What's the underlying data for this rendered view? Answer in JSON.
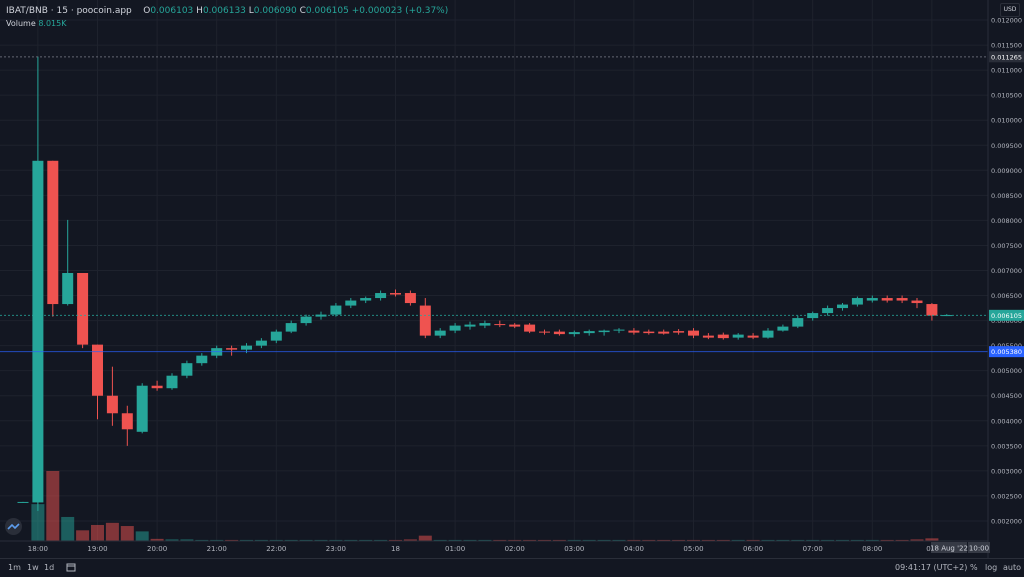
{
  "header": {
    "symbol": "IBAT/BNB",
    "interval": "15",
    "source": "poocoin.app",
    "o_label": "O",
    "o_value": "0.006103",
    "h_label": "H",
    "h_value": "0.006133",
    "l_label": "L",
    "l_value": "0.006090",
    "c_label": "C",
    "c_value": "0.006105",
    "change": "+0.000023 (+0.37%)",
    "volume_label": "Volume",
    "volume_value": "8.015K"
  },
  "currency_button": "USD",
  "bottom_bar": {
    "ranges": [
      "1m",
      "1w",
      "1d"
    ],
    "clock": "09:41:17 (UTC+2)",
    "percent": "%",
    "log": "log",
    "auto": "auto"
  },
  "colors": {
    "up": "#26a69a",
    "down": "#ef5350",
    "background": "#131722",
    "grid": "#1e222d"
  },
  "chart_data": {
    "type": "candlestick",
    "ylim": [
      0.0017,
      0.0122
    ],
    "y_ticks": [
      "0.002000",
      "0.002500",
      "0.003000",
      "0.003500",
      "0.004000",
      "0.004500",
      "0.005000",
      "0.005500",
      "0.006000",
      "0.006500",
      "0.007000",
      "0.007500",
      "0.008000",
      "0.008500",
      "0.009000",
      "0.009500",
      "0.010000",
      "0.010500",
      "0.011000",
      "0.011500",
      "0.012000"
    ],
    "x_ticks": [
      "18:00",
      "19:00",
      "20:00",
      "21:00",
      "22:00",
      "23:00",
      "18",
      "01:00",
      "02:00",
      "03:00",
      "04:00",
      "05:00",
      "06:00",
      "07:00",
      "08:00",
      "09:"
    ],
    "price_labels": [
      {
        "label": "0.011265",
        "value": 0.011265,
        "color": "#2a2e39"
      },
      {
        "label": "0.006105",
        "value": 0.006105,
        "color": "#26a69a"
      },
      {
        "label": "0.005380",
        "value": 0.00538,
        "color": "#2962ff"
      }
    ],
    "date_marker": "18 Aug '22",
    "time_marker": "10:00",
    "candles": [
      {
        "t": 0,
        "o": 0.00237,
        "h": 0.00238,
        "l": 0.00236,
        "c": 0.00238,
        "v": 0
      },
      {
        "t": 1,
        "o": 0.00237,
        "h": 0.01127,
        "l": 0.0022,
        "c": 0.00919,
        "v": 6.9
      },
      {
        "t": 2,
        "o": 0.00919,
        "h": 0.00919,
        "l": 0.00608,
        "c": 0.00633,
        "v": 13.1
      },
      {
        "t": 3,
        "o": 0.00633,
        "h": 0.00801,
        "l": 0.0063,
        "c": 0.00695,
        "v": 4.5
      },
      {
        "t": 4,
        "o": 0.00695,
        "h": 0.00695,
        "l": 0.00545,
        "c": 0.00552,
        "v": 2.0
      },
      {
        "t": 5,
        "o": 0.00552,
        "h": 0.00552,
        "l": 0.00403,
        "c": 0.0045,
        "v": 3.0
      },
      {
        "t": 6,
        "o": 0.0045,
        "h": 0.00508,
        "l": 0.0039,
        "c": 0.00415,
        "v": 3.4
      },
      {
        "t": 7,
        "o": 0.00415,
        "h": 0.0043,
        "l": 0.0035,
        "c": 0.00383,
        "v": 2.8
      },
      {
        "t": 8,
        "o": 0.00378,
        "h": 0.00475,
        "l": 0.00375,
        "c": 0.0047,
        "v": 1.8
      },
      {
        "t": 9,
        "o": 0.0047,
        "h": 0.0048,
        "l": 0.0046,
        "c": 0.00465,
        "v": 0.4
      },
      {
        "t": 10,
        "o": 0.00465,
        "h": 0.00495,
        "l": 0.00462,
        "c": 0.0049,
        "v": 0.3
      },
      {
        "t": 11,
        "o": 0.0049,
        "h": 0.0052,
        "l": 0.00485,
        "c": 0.00515,
        "v": 0.3
      },
      {
        "t": 12,
        "o": 0.00515,
        "h": 0.00535,
        "l": 0.0051,
        "c": 0.0053,
        "v": 0.2
      },
      {
        "t": 13,
        "o": 0.0053,
        "h": 0.0055,
        "l": 0.00525,
        "c": 0.00545,
        "v": 0.2
      },
      {
        "t": 14,
        "o": 0.00545,
        "h": 0.0055,
        "l": 0.0053,
        "c": 0.00542,
        "v": 0.2
      },
      {
        "t": 15,
        "o": 0.00542,
        "h": 0.00555,
        "l": 0.00535,
        "c": 0.0055,
        "v": 0.2
      },
      {
        "t": 16,
        "o": 0.0055,
        "h": 0.00565,
        "l": 0.00545,
        "c": 0.0056,
        "v": 0.2
      },
      {
        "t": 17,
        "o": 0.0056,
        "h": 0.00582,
        "l": 0.00555,
        "c": 0.00578,
        "v": 0.2
      },
      {
        "t": 18,
        "o": 0.00578,
        "h": 0.006,
        "l": 0.00575,
        "c": 0.00595,
        "v": 0.2
      },
      {
        "t": 19,
        "o": 0.00595,
        "h": 0.00612,
        "l": 0.0059,
        "c": 0.00608,
        "v": 0.2
      },
      {
        "t": 20,
        "o": 0.00608,
        "h": 0.00618,
        "l": 0.00602,
        "c": 0.00612,
        "v": 0.2
      },
      {
        "t": 21,
        "o": 0.00612,
        "h": 0.00635,
        "l": 0.00608,
        "c": 0.0063,
        "v": 0.2
      },
      {
        "t": 22,
        "o": 0.0063,
        "h": 0.00645,
        "l": 0.00625,
        "c": 0.0064,
        "v": 0.2
      },
      {
        "t": 23,
        "o": 0.0064,
        "h": 0.00648,
        "l": 0.00635,
        "c": 0.00645,
        "v": 0.2
      },
      {
        "t": 24,
        "o": 0.00645,
        "h": 0.0066,
        "l": 0.0064,
        "c": 0.00655,
        "v": 0.2
      },
      {
        "t": 25,
        "o": 0.00655,
        "h": 0.00662,
        "l": 0.00648,
        "c": 0.00652,
        "v": 0.2
      },
      {
        "t": 26,
        "o": 0.00655,
        "h": 0.0066,
        "l": 0.0063,
        "c": 0.00635,
        "v": 0.3
      },
      {
        "t": 27,
        "o": 0.0063,
        "h": 0.00645,
        "l": 0.00565,
        "c": 0.0057,
        "v": 1.0
      },
      {
        "t": 28,
        "o": 0.0057,
        "h": 0.00585,
        "l": 0.00565,
        "c": 0.0058,
        "v": 0.2
      },
      {
        "t": 29,
        "o": 0.0058,
        "h": 0.00595,
        "l": 0.00575,
        "c": 0.0059,
        "v": 0.2
      },
      {
        "t": 30,
        "o": 0.00588,
        "h": 0.00598,
        "l": 0.00582,
        "c": 0.00592,
        "v": 0.2
      },
      {
        "t": 31,
        "o": 0.0059,
        "h": 0.006,
        "l": 0.00585,
        "c": 0.00595,
        "v": 0.2
      },
      {
        "t": 32,
        "o": 0.00593,
        "h": 0.006,
        "l": 0.00587,
        "c": 0.00592,
        "v": 0.2
      },
      {
        "t": 33,
        "o": 0.00592,
        "h": 0.00595,
        "l": 0.00585,
        "c": 0.00588,
        "v": 0.2
      },
      {
        "t": 34,
        "o": 0.00592,
        "h": 0.00595,
        "l": 0.00575,
        "c": 0.00578,
        "v": 0.2
      },
      {
        "t": 35,
        "o": 0.00578,
        "h": 0.00582,
        "l": 0.00572,
        "c": 0.00576,
        "v": 0.2
      },
      {
        "t": 36,
        "o": 0.00578,
        "h": 0.00582,
        "l": 0.0057,
        "c": 0.00573,
        "v": 0.2
      },
      {
        "t": 37,
        "o": 0.00573,
        "h": 0.0058,
        "l": 0.00568,
        "c": 0.00577,
        "v": 0.2
      },
      {
        "t": 38,
        "o": 0.00575,
        "h": 0.00582,
        "l": 0.0057,
        "c": 0.00579,
        "v": 0.2
      },
      {
        "t": 39,
        "o": 0.00577,
        "h": 0.00582,
        "l": 0.0057,
        "c": 0.0058,
        "v": 0.2
      },
      {
        "t": 40,
        "o": 0.0058,
        "h": 0.00585,
        "l": 0.00575,
        "c": 0.00582,
        "v": 0.2
      },
      {
        "t": 41,
        "o": 0.0058,
        "h": 0.00585,
        "l": 0.00572,
        "c": 0.00576,
        "v": 0.2
      },
      {
        "t": 42,
        "o": 0.00578,
        "h": 0.00582,
        "l": 0.00572,
        "c": 0.00575,
        "v": 0.2
      },
      {
        "t": 43,
        "o": 0.00578,
        "h": 0.00582,
        "l": 0.00572,
        "c": 0.00574,
        "v": 0.2
      },
      {
        "t": 44,
        "o": 0.00579,
        "h": 0.00583,
        "l": 0.00572,
        "c": 0.00576,
        "v": 0.2
      },
      {
        "t": 45,
        "o": 0.0058,
        "h": 0.00585,
        "l": 0.00565,
        "c": 0.0057,
        "v": 0.2
      },
      {
        "t": 46,
        "o": 0.0057,
        "h": 0.00575,
        "l": 0.00563,
        "c": 0.00566,
        "v": 0.2
      },
      {
        "t": 47,
        "o": 0.00572,
        "h": 0.00576,
        "l": 0.00562,
        "c": 0.00565,
        "v": 0.2
      },
      {
        "t": 48,
        "o": 0.00566,
        "h": 0.00575,
        "l": 0.00562,
        "c": 0.00572,
        "v": 0.2
      },
      {
        "t": 49,
        "o": 0.0057,
        "h": 0.00575,
        "l": 0.00563,
        "c": 0.00566,
        "v": 0.2
      },
      {
        "t": 50,
        "o": 0.00566,
        "h": 0.00585,
        "l": 0.00564,
        "c": 0.0058,
        "v": 0.2
      },
      {
        "t": 51,
        "o": 0.0058,
        "h": 0.00592,
        "l": 0.00578,
        "c": 0.00588,
        "v": 0.2
      },
      {
        "t": 52,
        "o": 0.00588,
        "h": 0.0061,
        "l": 0.00585,
        "c": 0.00605,
        "v": 0.2
      },
      {
        "t": 53,
        "o": 0.00605,
        "h": 0.00618,
        "l": 0.006,
        "c": 0.00615,
        "v": 0.2
      },
      {
        "t": 54,
        "o": 0.00615,
        "h": 0.0063,
        "l": 0.0061,
        "c": 0.00625,
        "v": 0.2
      },
      {
        "t": 55,
        "o": 0.00625,
        "h": 0.00635,
        "l": 0.0062,
        "c": 0.00632,
        "v": 0.2
      },
      {
        "t": 56,
        "o": 0.00632,
        "h": 0.00648,
        "l": 0.00628,
        "c": 0.00645,
        "v": 0.2
      },
      {
        "t": 57,
        "o": 0.0064,
        "h": 0.0065,
        "l": 0.00636,
        "c": 0.00645,
        "v": 0.2
      },
      {
        "t": 58,
        "o": 0.00645,
        "h": 0.0065,
        "l": 0.00636,
        "c": 0.0064,
        "v": 0.2
      },
      {
        "t": 59,
        "o": 0.00645,
        "h": 0.0065,
        "l": 0.00635,
        "c": 0.0064,
        "v": 0.2
      },
      {
        "t": 60,
        "o": 0.0064,
        "h": 0.00645,
        "l": 0.00625,
        "c": 0.00635,
        "v": 0.3
      },
      {
        "t": 61,
        "o": 0.00633,
        "h": 0.00635,
        "l": 0.006,
        "c": 0.0061,
        "v": 0.5
      },
      {
        "t": 62,
        "o": 0.0061,
        "h": 0.00613,
        "l": 0.00609,
        "c": 0.00611,
        "v": 0.1
      }
    ]
  }
}
